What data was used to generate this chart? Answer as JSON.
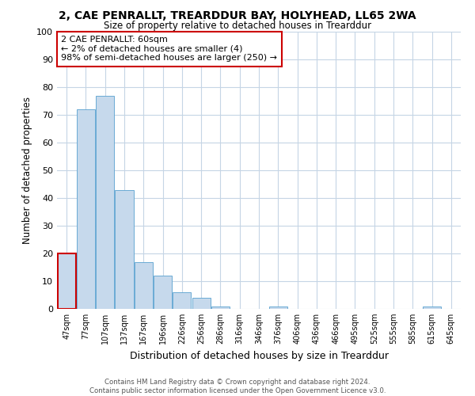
{
  "title": "2, CAE PENRALLT, TREARDDUR BAY, HOLYHEAD, LL65 2WA",
  "subtitle": "Size of property relative to detached houses in Trearddur",
  "xlabel": "Distribution of detached houses by size in Trearddur",
  "ylabel": "Number of detached properties",
  "bin_labels": [
    "47sqm",
    "77sqm",
    "107sqm",
    "137sqm",
    "167sqm",
    "196sqm",
    "226sqm",
    "256sqm",
    "286sqm",
    "316sqm",
    "346sqm",
    "376sqm",
    "406sqm",
    "436sqm",
    "466sqm",
    "495sqm",
    "525sqm",
    "555sqm",
    "585sqm",
    "615sqm",
    "645sqm"
  ],
  "bar_heights": [
    20,
    72,
    77,
    43,
    17,
    12,
    6,
    4,
    1,
    0,
    0,
    1,
    0,
    0,
    0,
    0,
    0,
    0,
    0,
    1,
    0
  ],
  "bar_color": "#c6d9ec",
  "bar_edge_color": "#6aaad4",
  "highlight_bar_index": 0,
  "highlight_edge_color": "#cc0000",
  "annotation_text": "2 CAE PENRALLT: 60sqm\n← 2% of detached houses are smaller (4)\n98% of semi-detached houses are larger (250) →",
  "annotation_box_edge_color": "#cc0000",
  "ylim": [
    0,
    100
  ],
  "yticks": [
    0,
    10,
    20,
    30,
    40,
    50,
    60,
    70,
    80,
    90,
    100
  ],
  "footer_line1": "Contains HM Land Registry data © Crown copyright and database right 2024.",
  "footer_line2": "Contains public sector information licensed under the Open Government Licence v3.0.",
  "bg_color": "#ffffff",
  "grid_color": "#c5d5e5"
}
